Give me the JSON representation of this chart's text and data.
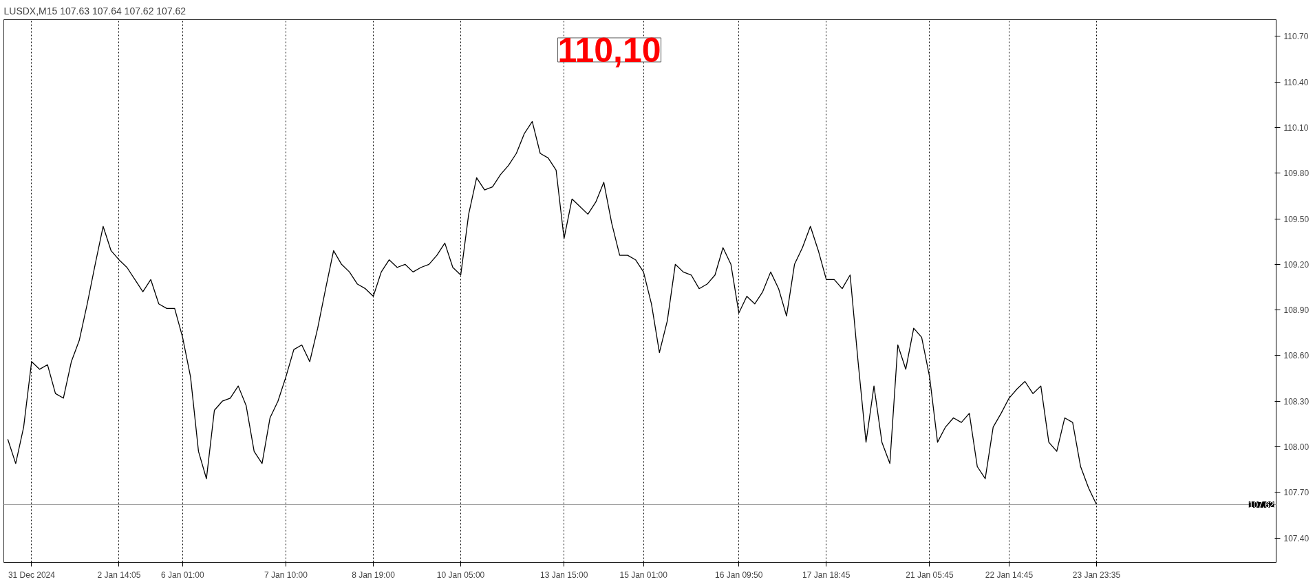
{
  "chart_data": {
    "type": "line",
    "title": "LUSDX,M15  107.63 107.64 107.62 107.62",
    "categories": [
      null,
      null,
      null,
      "31 Dec 2024",
      null,
      null,
      null,
      null,
      null,
      null,
      null,
      null,
      null,
      null,
      "2 Jan 14:05",
      null,
      null,
      null,
      null,
      null,
      null,
      null,
      "6 Jan 01:00",
      null,
      null,
      null,
      null,
      null,
      null,
      null,
      null,
      null,
      null,
      null,
      null,
      "7 Jan 10:00",
      null,
      null,
      null,
      null,
      null,
      null,
      null,
      null,
      null,
      null,
      "8 Jan 19:00",
      null,
      null,
      null,
      null,
      null,
      null,
      null,
      null,
      null,
      null,
      "10 Jan 05:00",
      null,
      null,
      null,
      null,
      null,
      null,
      null,
      null,
      null,
      null,
      null,
      null,
      "13 Jan 15:00",
      null,
      null,
      null,
      null,
      null,
      null,
      null,
      null,
      null,
      "15 Jan 01:00",
      null,
      null,
      null,
      null,
      null,
      null,
      null,
      null,
      null,
      null,
      null,
      "16 Jan 09:50",
      null,
      null,
      null,
      null,
      null,
      null,
      null,
      null,
      null,
      null,
      "17 Jan 18:45",
      null,
      null,
      null,
      null,
      null,
      null,
      null,
      null,
      null,
      null,
      null,
      null,
      "21 Jan 05:45",
      null,
      null,
      null,
      null,
      null,
      null,
      null,
      null,
      null,
      "22 Jan 14:45",
      null,
      null,
      null,
      null,
      null,
      null,
      null,
      null,
      null,
      null,
      "23 Jan 23:35"
    ],
    "series": [
      {
        "color": "#000000",
        "values": [
          108.05,
          107.89,
          108.13,
          108.56,
          108.51,
          108.54,
          108.35,
          108.32,
          108.56,
          108.7,
          108.94,
          109.2,
          109.45,
          109.29,
          109.23,
          109.18,
          109.1,
          109.02,
          109.1,
          108.94,
          108.91,
          108.91,
          108.72,
          108.46,
          107.97,
          107.79,
          108.24,
          108.3,
          108.32,
          108.4,
          108.27,
          107.97,
          107.89,
          108.19,
          108.3,
          108.46,
          108.64,
          108.67,
          108.56,
          108.78,
          109.04,
          109.29,
          109.2,
          109.15,
          109.07,
          109.04,
          108.99,
          109.15,
          109.23,
          109.18,
          109.2,
          109.15,
          109.18,
          109.2,
          109.26,
          109.34,
          109.18,
          109.13,
          109.53,
          109.77,
          109.69,
          109.71,
          109.79,
          109.85,
          109.93,
          110.06,
          110.14,
          109.93,
          109.9,
          109.82,
          109.37,
          109.63,
          109.58,
          109.53,
          109.61,
          109.74,
          109.47,
          109.26,
          109.26,
          109.23,
          109.15,
          108.94,
          108.62,
          108.83,
          109.2,
          109.15,
          109.13,
          109.04,
          109.07,
          109.13,
          109.31,
          109.2,
          108.88,
          108.99,
          108.94,
          109.02,
          109.15,
          109.04,
          108.86,
          109.2,
          109.31,
          109.45,
          109.29,
          109.1,
          109.1,
          109.04,
          109.13,
          108.56,
          108.03,
          108.4,
          108.03,
          107.89,
          108.67,
          108.51,
          108.78,
          108.72,
          108.46,
          108.03,
          108.13,
          108.19,
          108.16,
          108.22,
          107.87,
          107.79,
          108.13,
          108.22,
          108.32,
          108.38,
          108.43,
          108.35,
          108.4,
          108.03,
          107.97,
          108.19,
          108.16,
          107.87,
          107.73,
          107.62
        ]
      }
    ],
    "ylim": [
      107.24,
      110.81
    ],
    "yticks": [
      {
        "value": 107.4,
        "label": "107.40"
      },
      {
        "value": 107.7,
        "label": "107.70"
      },
      {
        "value": 108.0,
        "label": "108.00"
      },
      {
        "value": 108.3,
        "label": "108.30"
      },
      {
        "value": 108.6,
        "label": "108.60"
      },
      {
        "value": 108.9,
        "label": "108.90"
      },
      {
        "value": 109.2,
        "label": "109.20"
      },
      {
        "value": 109.5,
        "label": "109.50"
      },
      {
        "value": 109.8,
        "label": "109.80"
      },
      {
        "value": 110.1,
        "label": "110.10"
      },
      {
        "value": 110.4,
        "label": "110.40"
      },
      {
        "value": 110.7,
        "label": "110.70"
      }
    ],
    "ref_lines": [
      {
        "axis": "y",
        "value": 107.62,
        "label": "107.62",
        "color": "#a0a0a0"
      }
    ],
    "annotations": [
      "110,10"
    ],
    "grid": "x",
    "marker": "none",
    "line_style": "solid"
  }
}
